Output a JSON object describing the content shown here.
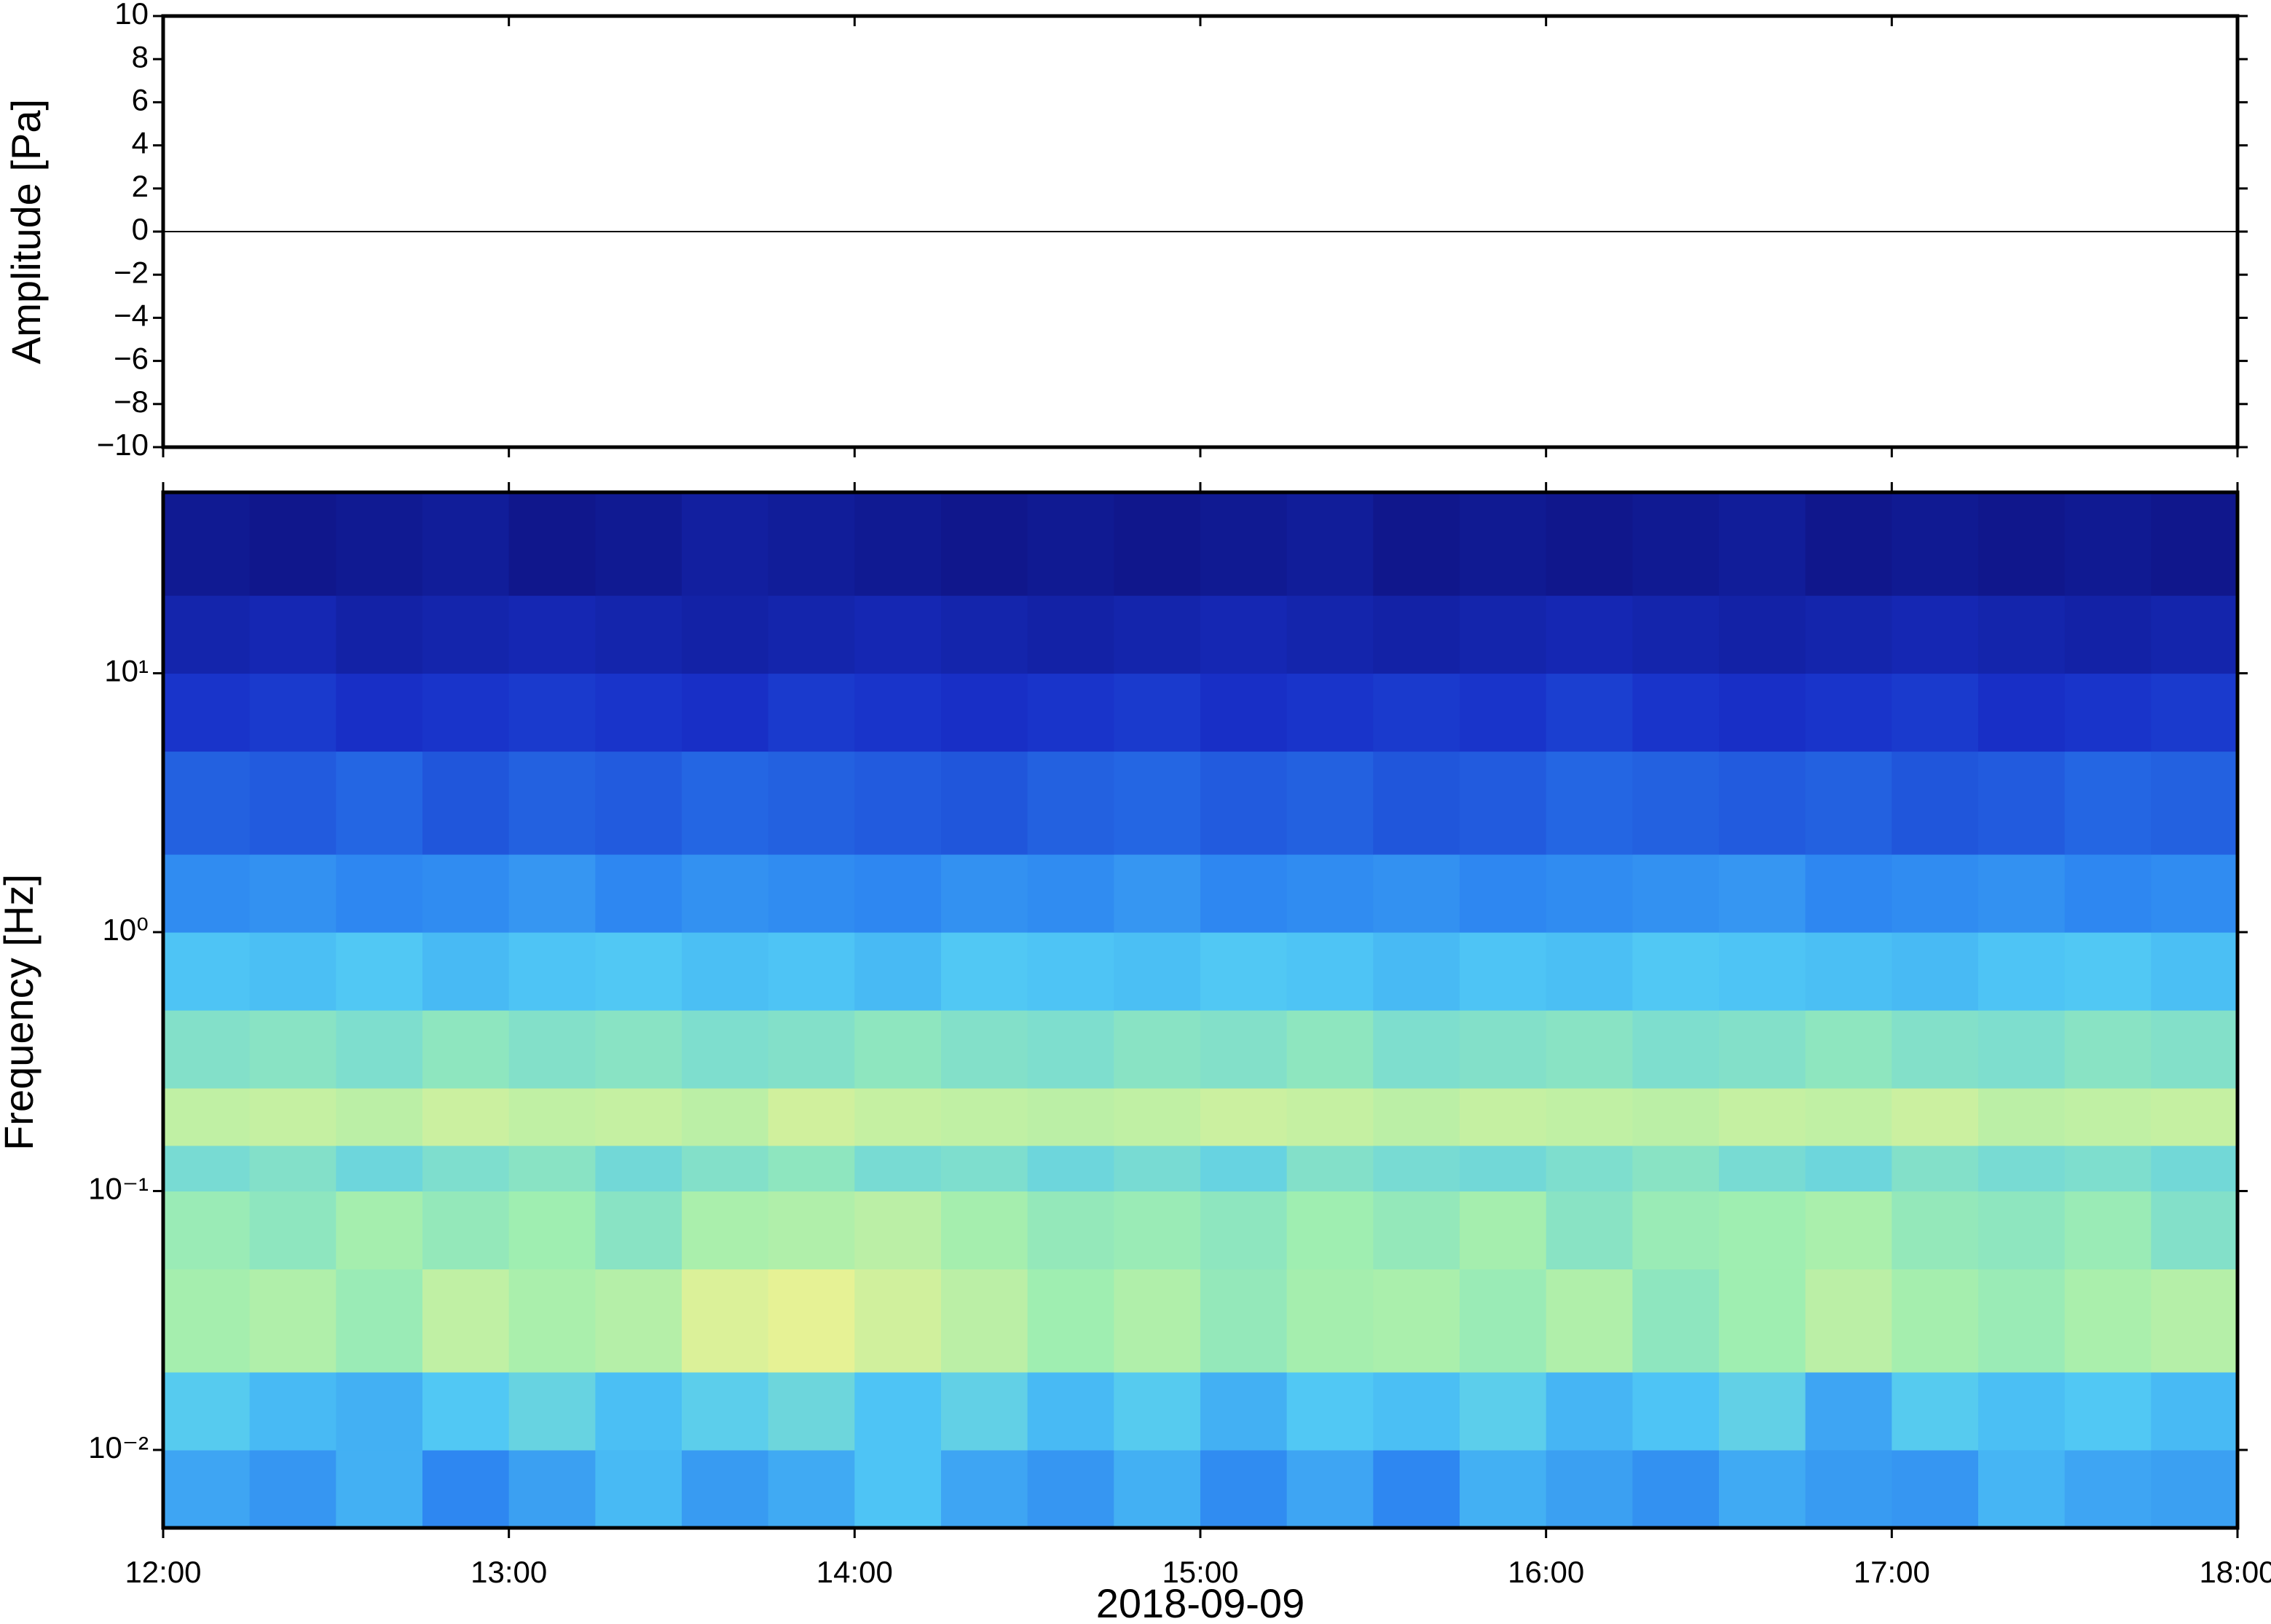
{
  "chart_data": [
    {
      "type": "line",
      "ylabel": "Amplitude [Pa]",
      "ylim": [
        -10,
        10
      ],
      "yticks": [
        {
          "value": -10,
          "label": "−10"
        },
        {
          "value": -8,
          "label": "−8"
        },
        {
          "value": -6,
          "label": "−6"
        },
        {
          "value": -4,
          "label": "−4"
        },
        {
          "value": -2,
          "label": "−2"
        },
        0,
        2,
        4,
        6,
        8,
        10
      ],
      "xlim": [
        12,
        18
      ],
      "color": "#000000",
      "series": [
        {
          "x": [
            12,
            18
          ],
          "values": [
            0,
            0
          ]
        }
      ]
    },
    {
      "type": "heatmap",
      "ylabel": "Frequency [Hz]",
      "xlabel": "2018-09-09",
      "log_y": true,
      "ylim": [
        0.005,
        50
      ],
      "yticks": [
        {
          "value": 0.01,
          "label": "10⁻²"
        },
        {
          "value": 0.1,
          "label": "10⁻¹"
        },
        {
          "value": 1,
          "label": "10⁰"
        },
        {
          "value": 10,
          "label": "10¹"
        }
      ],
      "xlim": [
        12,
        18
      ],
      "xticks": [
        {
          "value": 12,
          "label": "12:00"
        },
        {
          "value": 13,
          "label": "13:00"
        },
        {
          "value": 14,
          "label": "14:00"
        },
        {
          "value": 15,
          "label": "15:00"
        },
        {
          "value": 16,
          "label": "16:00"
        },
        {
          "value": 17,
          "label": "17:00"
        },
        {
          "value": 18,
          "label": "18:00"
        }
      ],
      "colormap": [
        "#0b0a6b",
        "#1830c8",
        "#2a80f0",
        "#50c8f5",
        "#a0eeb0",
        "#eef292",
        "#f6b062",
        "#e03a20"
      ],
      "x_edges": [
        12,
        12.25,
        12.5,
        12.75,
        13,
        13.25,
        13.5,
        13.75,
        14,
        14.25,
        14.5,
        14.75,
        15,
        15.25,
        15.5,
        15.75,
        16,
        16.25,
        16.5,
        16.75,
        17,
        17.25,
        17.5,
        17.75,
        18
      ],
      "y_edges": [
        0.005,
        0.01,
        0.02,
        0.05,
        0.1,
        0.15,
        0.25,
        0.5,
        1,
        2,
        5,
        10,
        20,
        50
      ],
      "z": [
        [
          0.36,
          0.33,
          0.38,
          0.3,
          0.35,
          0.4,
          0.34,
          0.37,
          0.42,
          0.36,
          0.33,
          0.38,
          0.31,
          0.36,
          0.3,
          0.38,
          0.35,
          0.32,
          0.37,
          0.34,
          0.33,
          0.39,
          0.36,
          0.35
        ],
        [
          0.44,
          0.4,
          0.38,
          0.43,
          0.47,
          0.41,
          0.45,
          0.48,
          0.42,
          0.46,
          0.4,
          0.44,
          0.38,
          0.43,
          0.41,
          0.45,
          0.39,
          0.42,
          0.46,
          0.36,
          0.44,
          0.41,
          0.43,
          0.4
        ],
        [
          0.58,
          0.6,
          0.56,
          0.63,
          0.59,
          0.61,
          0.68,
          0.7,
          0.66,
          0.62,
          0.57,
          0.6,
          0.55,
          0.58,
          0.59,
          0.56,
          0.6,
          0.54,
          0.57,
          0.62,
          0.58,
          0.56,
          0.59,
          0.61
        ],
        [
          0.56,
          0.54,
          0.58,
          0.55,
          0.57,
          0.53,
          0.59,
          0.6,
          0.62,
          0.58,
          0.55,
          0.56,
          0.54,
          0.57,
          0.55,
          0.58,
          0.53,
          0.56,
          0.57,
          0.59,
          0.55,
          0.54,
          0.56,
          0.52
        ],
        [
          0.5,
          0.52,
          0.48,
          0.51,
          0.53,
          0.49,
          0.52,
          0.54,
          0.5,
          0.51,
          0.48,
          0.5,
          0.47,
          0.52,
          0.5,
          0.49,
          0.51,
          0.53,
          0.5,
          0.48,
          0.52,
          0.5,
          0.51,
          0.49
        ],
        [
          0.63,
          0.64,
          0.62,
          0.65,
          0.63,
          0.64,
          0.62,
          0.66,
          0.64,
          0.63,
          0.62,
          0.63,
          0.65,
          0.64,
          0.62,
          0.64,
          0.63,
          0.62,
          0.64,
          0.63,
          0.65,
          0.62,
          0.63,
          0.64
        ],
        [
          0.52,
          0.53,
          0.51,
          0.54,
          0.52,
          0.53,
          0.51,
          0.52,
          0.54,
          0.52,
          0.51,
          0.53,
          0.52,
          0.54,
          0.51,
          0.52,
          0.53,
          0.51,
          0.52,
          0.54,
          0.52,
          0.51,
          0.53,
          0.52
        ],
        [
          0.42,
          0.41,
          0.43,
          0.4,
          0.42,
          0.43,
          0.41,
          0.42,
          0.4,
          0.43,
          0.42,
          0.41,
          0.43,
          0.42,
          0.4,
          0.42,
          0.41,
          0.43,
          0.42,
          0.41,
          0.4,
          0.42,
          0.43,
          0.41
        ],
        [
          0.31,
          0.32,
          0.3,
          0.31,
          0.33,
          0.3,
          0.32,
          0.31,
          0.3,
          0.32,
          0.31,
          0.33,
          0.3,
          0.31,
          0.32,
          0.3,
          0.31,
          0.32,
          0.33,
          0.3,
          0.31,
          0.32,
          0.3,
          0.31
        ],
        [
          0.23,
          0.22,
          0.24,
          0.21,
          0.23,
          0.22,
          0.24,
          0.23,
          0.22,
          0.21,
          0.23,
          0.24,
          0.22,
          0.23,
          0.21,
          0.22,
          0.24,
          0.23,
          0.22,
          0.23,
          0.21,
          0.22,
          0.24,
          0.23
        ],
        [
          0.15,
          0.16,
          0.14,
          0.15,
          0.16,
          0.15,
          0.14,
          0.16,
          0.15,
          0.14,
          0.15,
          0.16,
          0.14,
          0.15,
          0.16,
          0.15,
          0.17,
          0.15,
          0.14,
          0.15,
          0.16,
          0.14,
          0.15,
          0.16
        ],
        [
          0.1,
          0.11,
          0.09,
          0.1,
          0.11,
          0.1,
          0.09,
          0.1,
          0.11,
          0.1,
          0.09,
          0.1,
          0.11,
          0.1,
          0.09,
          0.1,
          0.11,
          0.1,
          0.09,
          0.1,
          0.11,
          0.1,
          0.09,
          0.1
        ],
        [
          0.06,
          0.05,
          0.06,
          0.07,
          0.05,
          0.06,
          0.08,
          0.07,
          0.06,
          0.05,
          0.06,
          0.05,
          0.06,
          0.07,
          0.05,
          0.06,
          0.05,
          0.06,
          0.07,
          0.05,
          0.06,
          0.05,
          0.06,
          0.05
        ]
      ]
    }
  ]
}
